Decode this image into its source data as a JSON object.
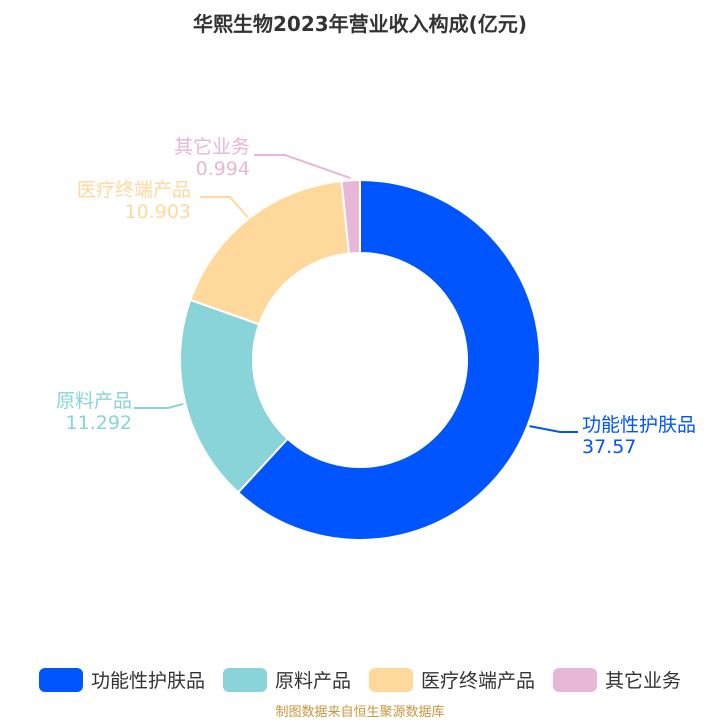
{
  "chart_data": {
    "type": "pie",
    "title": "华熙生物2023年营业收入构成(亿元)",
    "categories": [
      "功能性护肤品",
      "原料产品",
      "医疗终端产品",
      "其它业务"
    ],
    "values": [
      37.57,
      11.292,
      10.903,
      0.994
    ],
    "value_labels": [
      "37.57",
      "11.292",
      "10.903",
      "0.994"
    ],
    "colors": [
      "#0055ff",
      "#88d4d9",
      "#ffd99c",
      "#e8b6d6"
    ],
    "donut": true,
    "legend_position": "bottom"
  },
  "source_note": "制图数据来自恒生聚源数据库"
}
